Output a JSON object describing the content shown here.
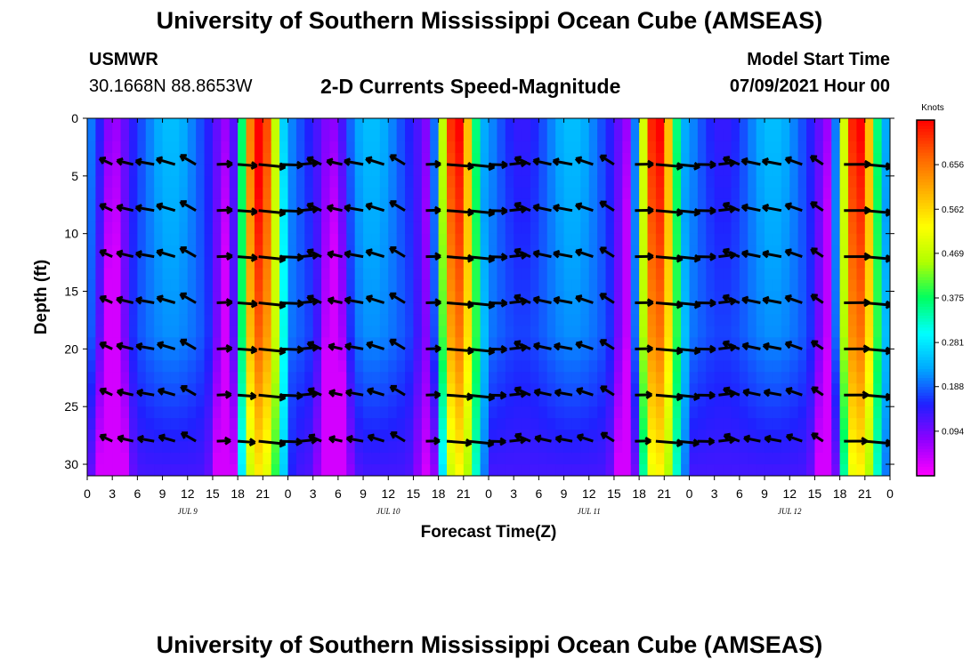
{
  "header": {
    "title_top": "University of Southern Mississippi Ocean Cube (AMSEAS)",
    "title_bottom": "University of Southern Mississippi Ocean Cube (AMSEAS)",
    "station": "USMWR",
    "coordinates": "30.1668N  88.8653W",
    "plot_title": "2-D Currents Speed-Magnitude",
    "model_start_label": "Model Start Time",
    "model_start_value": "07/09/2021 Hour 00"
  },
  "chart_data": {
    "type": "heatmap",
    "title": "2-D Currents Speed-Magnitude",
    "xlabel": "Forecast Time(Z)",
    "ylabel": "Depth (ft)",
    "x_tick_labels": [
      "0",
      "3",
      "6",
      "9",
      "12",
      "15",
      "18",
      "21",
      "0",
      "3",
      "6",
      "9",
      "12",
      "15",
      "18",
      "21",
      "0",
      "3",
      "6",
      "9",
      "12",
      "15",
      "18",
      "21",
      "0",
      "3",
      "6",
      "9",
      "12",
      "15",
      "18",
      "21",
      "0"
    ],
    "x_range_hours": [
      0,
      96
    ],
    "day_labels": [
      {
        "label": "JUL 9",
        "hour": 12
      },
      {
        "label": "JUL 10",
        "hour": 36
      },
      {
        "label": "JUL 11",
        "hour": 60
      },
      {
        "label": "JUL 12",
        "hour": 84
      }
    ],
    "y_tick_labels": [
      "0",
      "5",
      "10",
      "15",
      "20",
      "25",
      "30"
    ],
    "y_range_ft": [
      0,
      31
    ],
    "colorbar": {
      "unit_label": "Knots",
      "tick_labels": [
        "0.094",
        "0.188",
        "0.281",
        "0.375",
        "0.469",
        "0.562",
        "0.656"
      ],
      "range": [
        0,
        0.75
      ],
      "colors": [
        "#ff00ff",
        "#9000ff",
        "#2020ff",
        "#00a8ff",
        "#00ffff",
        "#00ff60",
        "#b0ff00",
        "#ffff00",
        "#ffb000",
        "#ff6000",
        "#ff0000"
      ]
    },
    "arrow_depths_ft": [
      4,
      8,
      12,
      16,
      20,
      24,
      28
    ],
    "high_speed_centers_hours": [
      20.5,
      44,
      68,
      92
    ],
    "high_speed_peak_knots": 0.7,
    "low_speed_min_knots": 0.03
  }
}
